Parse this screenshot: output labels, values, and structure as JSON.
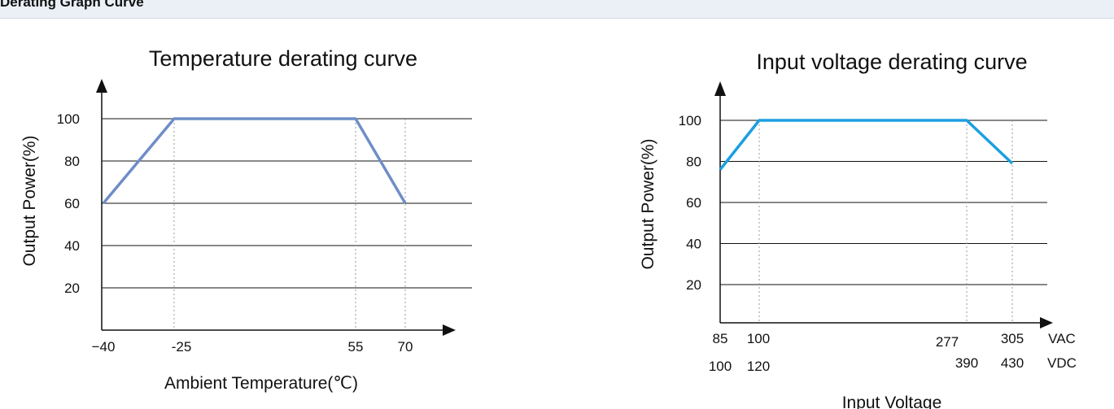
{
  "header": {
    "title": "Derating Graph Curve"
  },
  "chart_data": [
    {
      "type": "line",
      "title": "Temperature derating curve",
      "xlabel": "Ambient Temperature(℃)",
      "ylabel": "Output Power(%)",
      "y_ticks": [
        "100",
        "80",
        "60",
        "40",
        "20"
      ],
      "x_ticks": [
        "−40",
        "-25",
        "55",
        "70"
      ],
      "x": [
        -40,
        -25,
        55,
        70
      ],
      "series": [
        {
          "values": [
            60,
            100,
            100,
            60
          ],
          "color": "#6f8dc8"
        }
      ],
      "grid": true,
      "ylim": [
        0,
        110
      ]
    },
    {
      "type": "line",
      "title": "Input voltage  derating curve",
      "xlabel": "Input Voltage",
      "ylabel": "Output Power(%)",
      "y_ticks": [
        "100",
        "80",
        "60",
        "40",
        "20"
      ],
      "x_ticks_vac": [
        "85",
        "100",
        "277",
        "305"
      ],
      "x_ticks_vdc": [
        "100",
        "120",
        "390",
        "430"
      ],
      "unit_vac": "VAC",
      "unit_vdc": "VDC",
      "x": [
        85,
        100,
        277,
        305
      ],
      "series": [
        {
          "values": [
            76,
            100,
            100,
            79
          ],
          "color": "#1a9fe0"
        }
      ],
      "grid": true,
      "ylim": [
        0,
        110
      ]
    }
  ]
}
